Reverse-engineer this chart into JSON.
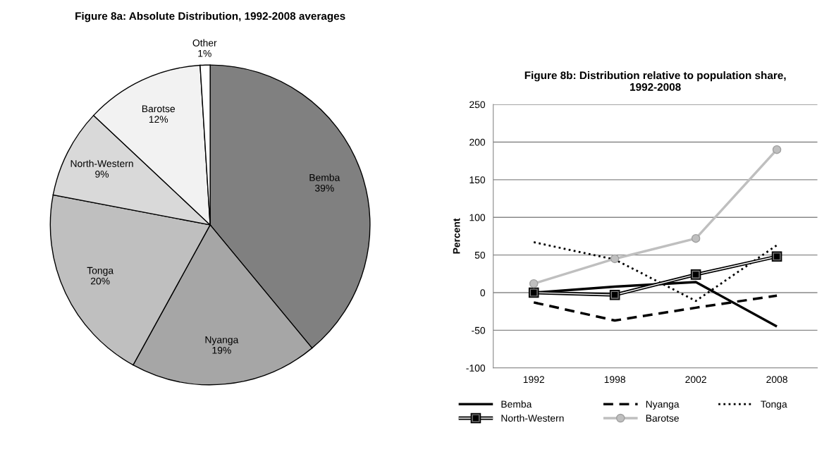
{
  "chart_data": [
    {
      "type": "pie",
      "title": "Figure 8a: Absolute Distribution, 1992-2008 averages",
      "categories": [
        "Bemba",
        "Nyanga",
        "Tonga",
        "North-Western",
        "Barotse",
        "Other"
      ],
      "values": [
        39,
        19,
        20,
        9,
        12,
        1
      ],
      "value_labels": [
        "39%",
        "19%",
        "20%",
        "9%",
        "12%",
        "1%"
      ],
      "colors": [
        "#808080",
        "#a6a6a6",
        "#bfbfbf",
        "#d9d9d9",
        "#f2f2f2",
        "#ffffff"
      ]
    },
    {
      "type": "line",
      "title": "Figure 8b: Distribution relative to population share, 1992-2008",
      "ylabel": "Percent",
      "categories": [
        "1992",
        "1998",
        "2002",
        "2008"
      ],
      "ylim": [
        -100,
        250
      ],
      "yticks": [
        -100,
        -50,
        0,
        50,
        100,
        150,
        200,
        250
      ],
      "grid": "y",
      "legend": "bottom",
      "series": [
        {
          "name": "Bemba",
          "color": "#000000",
          "line_style": "solid",
          "marker": "none",
          "values": [
            0,
            8,
            14,
            -45
          ]
        },
        {
          "name": "Nyanga",
          "color": "#000000",
          "line_style": "dashed",
          "marker": "none",
          "values": [
            -13,
            -37,
            -20,
            -4
          ]
        },
        {
          "name": "Tonga",
          "color": "#000000",
          "line_style": "dotted",
          "marker": "none",
          "values": [
            67,
            44,
            -11,
            63
          ]
        },
        {
          "name": "North-Western",
          "color": "#000000",
          "line_style": "solid",
          "marker": "square",
          "values": [
            0,
            -3,
            24,
            48
          ]
        },
        {
          "name": "Barotse",
          "color": "#bfbfbf",
          "line_style": "solid",
          "marker": "circle",
          "values": [
            12,
            45,
            72,
            190
          ]
        }
      ]
    }
  ]
}
